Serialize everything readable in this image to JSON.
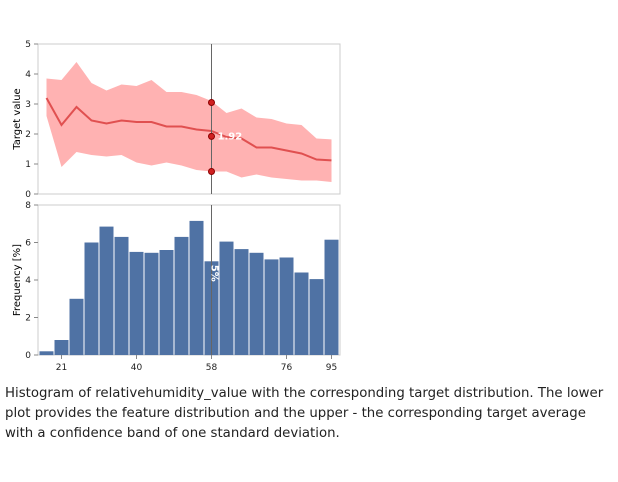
{
  "chart_data": [
    {
      "type": "area",
      "name": "target-plot",
      "ylabel": "Target value",
      "ylim": [
        0,
        5
      ],
      "yticks": [
        0,
        1,
        2,
        3,
        4,
        5
      ],
      "mean": [
        3.2,
        2.3,
        2.9,
        2.45,
        2.35,
        2.45,
        2.4,
        2.4,
        2.25,
        2.25,
        2.15,
        2.1,
        1.9,
        1.85,
        1.55,
        1.55,
        1.45,
        1.35,
        1.15,
        1.12
      ],
      "upper": [
        3.85,
        3.8,
        4.4,
        3.7,
        3.45,
        3.65,
        3.6,
        3.8,
        3.4,
        3.4,
        3.3,
        3.1,
        2.7,
        2.85,
        2.55,
        2.5,
        2.35,
        2.3,
        1.85,
        1.82
      ],
      "lower": [
        2.6,
        0.9,
        1.4,
        1.3,
        1.25,
        1.3,
        1.05,
        0.95,
        1.05,
        0.95,
        0.8,
        0.75,
        0.75,
        0.55,
        0.65,
        0.55,
        0.5,
        0.45,
        0.45,
        0.4
      ],
      "band_color": "#ffb2b2",
      "line_color": "#e05050",
      "cursor": {
        "mean": 1.92,
        "upper": 3.05,
        "lower": 0.75,
        "label": "1.92"
      }
    },
    {
      "type": "bar",
      "name": "frequency-histogram",
      "ylabel": "Frequency [%]",
      "ylim": [
        0,
        8
      ],
      "yticks": [
        0,
        2,
        4,
        6,
        8
      ],
      "values": [
        0.2,
        0.8,
        3.0,
        6.0,
        6.85,
        6.3,
        5.5,
        5.45,
        5.6,
        6.3,
        7.15,
        5.0,
        6.05,
        5.65,
        5.45,
        5.1,
        5.2,
        4.4,
        4.05,
        6.15
      ],
      "xticks": [
        "21",
        "40",
        "58",
        "76",
        "95"
      ],
      "bar_color": "#4f72a4",
      "cursor_label": "5%"
    }
  ],
  "caption": "Histogram of relativehumidity_value with the corresponding target distribution. The lower plot provides the feature distribution and the upper - the corresponding target average with a confidence band of one standard deviation."
}
